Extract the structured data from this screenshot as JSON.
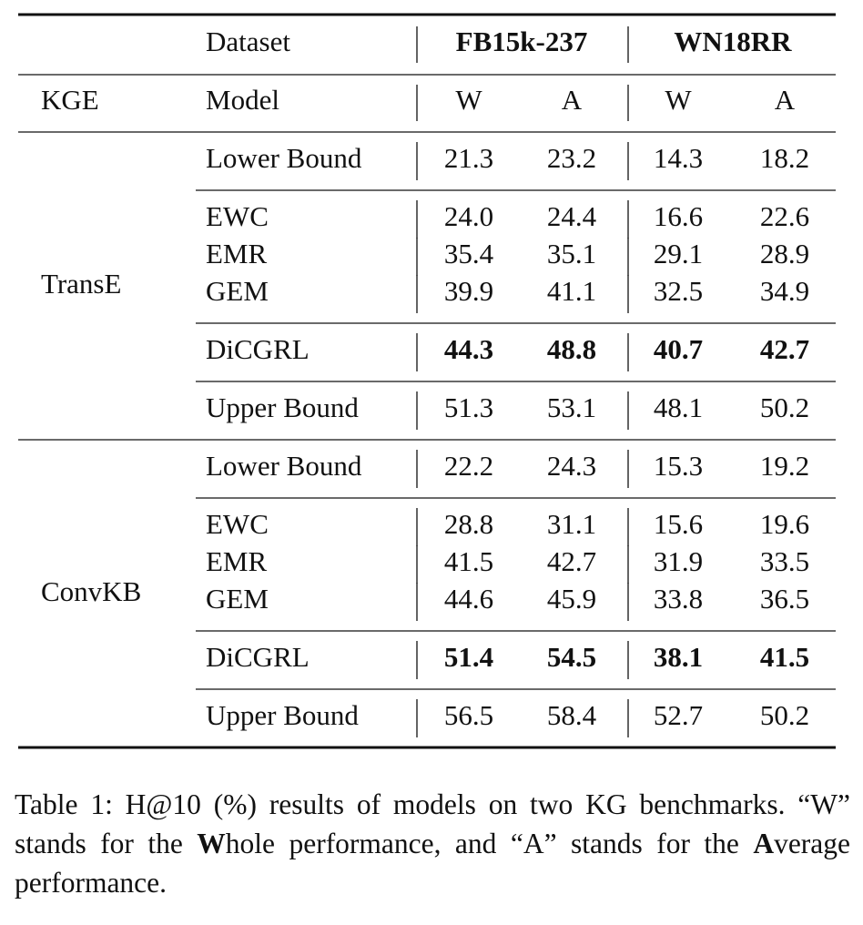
{
  "table": {
    "header": {
      "dataset_label": "Dataset",
      "datasets": [
        "FB15k-237",
        "WN18RR"
      ],
      "kge_label": "KGE",
      "model_label": "Model",
      "metrics": [
        "W",
        "A",
        "W",
        "A"
      ]
    },
    "groups": [
      {
        "kge": "TransE",
        "blocks": [
          [
            {
              "model": "Lower Bound",
              "values": [
                "21.3",
                "23.2",
                "14.3",
                "18.2"
              ]
            }
          ],
          [
            {
              "model": "EWC",
              "values": [
                "24.0",
                "24.4",
                "16.6",
                "22.6"
              ]
            },
            {
              "model": "EMR",
              "values": [
                "35.4",
                "35.1",
                "29.1",
                "28.9"
              ]
            },
            {
              "model": "GEM",
              "values": [
                "39.9",
                "41.1",
                "32.5",
                "34.9"
              ]
            }
          ],
          [
            {
              "model": "DiCGRL",
              "values": [
                "44.3",
                "48.8",
                "40.7",
                "42.7"
              ],
              "bold": true
            }
          ],
          [
            {
              "model": "Upper Bound",
              "values": [
                "51.3",
                "53.1",
                "48.1",
                "50.2"
              ]
            }
          ]
        ]
      },
      {
        "kge": "ConvKB",
        "blocks": [
          [
            {
              "model": "Lower Bound",
              "values": [
                "22.2",
                "24.3",
                "15.3",
                "19.2"
              ]
            }
          ],
          [
            {
              "model": "EWC",
              "values": [
                "28.8",
                "31.1",
                "15.6",
                "19.6"
              ]
            },
            {
              "model": "EMR",
              "values": [
                "41.5",
                "42.7",
                "31.9",
                "33.5"
              ]
            },
            {
              "model": "GEM",
              "values": [
                "44.6",
                "45.9",
                "33.8",
                "36.5"
              ]
            }
          ],
          [
            {
              "model": "DiCGRL",
              "values": [
                "51.4",
                "54.5",
                "38.1",
                "41.5"
              ],
              "bold": true
            }
          ],
          [
            {
              "model": "Upper Bound",
              "values": [
                "56.5",
                "58.4",
                "52.7",
                "50.2"
              ]
            }
          ]
        ]
      }
    ]
  },
  "caption": [
    "Table 1: H@10 (%) results of models on two KG benchmarks. “W” stands for the ",
    "W",
    "hole performance, and “A” stands for the ",
    "A",
    "verage performance."
  ]
}
